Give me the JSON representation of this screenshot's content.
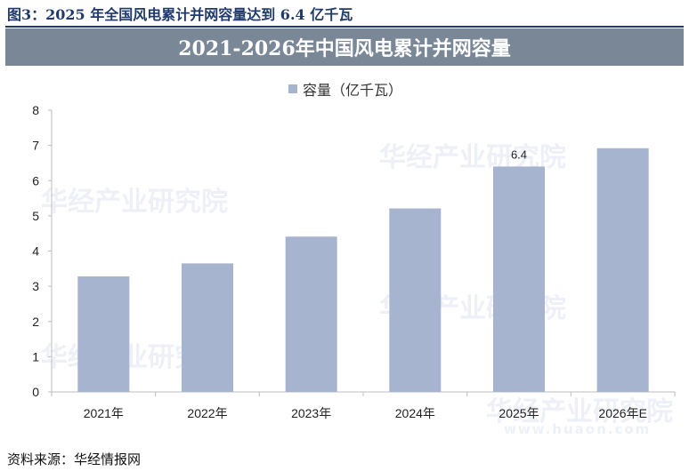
{
  "figure": {
    "caption": "图3：2025 年全国风电累计并网容量达到 6.4 亿千瓦",
    "source": "资料来源：华经情报网"
  },
  "watermark": {
    "brand": "华经产业研究院",
    "url": "www.huaon.com"
  },
  "colors": {
    "bar": "#a6b4cf",
    "banner": "#7a8797",
    "caption": "#1f3a6b"
  },
  "chart_data": {
    "type": "bar",
    "title": "2021-2026年中国风电累计并网容量",
    "categories": [
      "2021年",
      "2022年",
      "2023年",
      "2024年",
      "2025年",
      "2026年E"
    ],
    "series": [
      {
        "name": "容量（亿千瓦）",
        "values": [
          3.28,
          3.65,
          4.41,
          5.21,
          6.4,
          6.92
        ]
      }
    ],
    "data_labels": [
      null,
      null,
      null,
      null,
      "6.4",
      null
    ],
    "ylim": [
      0,
      8
    ],
    "yticks": [
      "0",
      "1",
      "2",
      "3",
      "4",
      "5",
      "6",
      "7",
      "8"
    ],
    "grid": false,
    "legend": "top-center"
  }
}
